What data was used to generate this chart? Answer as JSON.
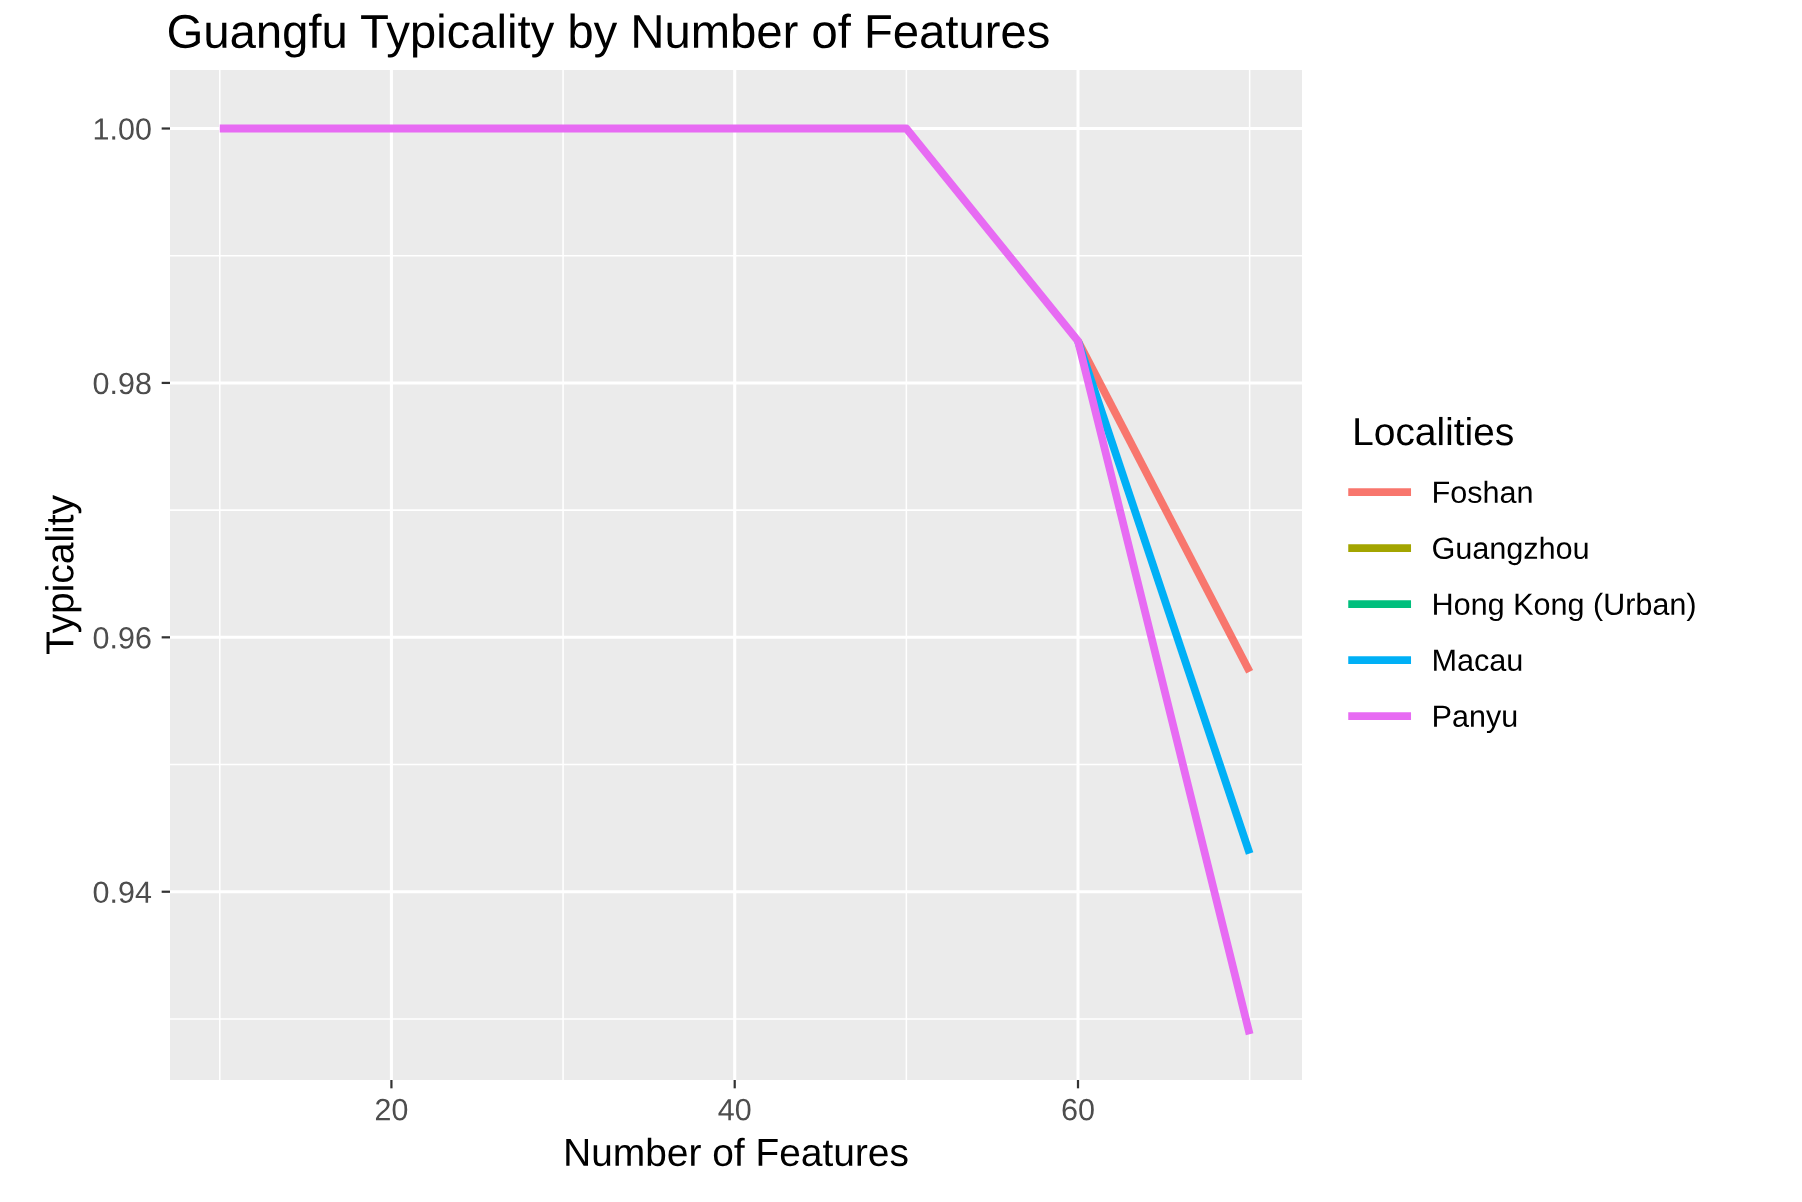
{
  "chart_data": {
    "type": "line",
    "title": "Guangfu Typicality by Number of Features",
    "xlabel": "Number of Features",
    "ylabel": "Typicality",
    "legend_title": "Localities",
    "legend": "right",
    "grid": true,
    "x": [
      10,
      20,
      30,
      40,
      50,
      60,
      70
    ],
    "series": [
      {
        "name": "Foshan",
        "color": "#f8766d",
        "values": [
          null,
          null,
          null,
          null,
          null,
          0.9833,
          0.9573
        ]
      },
      {
        "name": "Guangzhou",
        "color": "#a3a500",
        "values": [
          null,
          null,
          null,
          null,
          null,
          null,
          null
        ]
      },
      {
        "name": "Hong Kong (Urban)",
        "color": "#00bf7d",
        "values": [
          null,
          null,
          null,
          null,
          null,
          null,
          null
        ]
      },
      {
        "name": "Macau",
        "color": "#00b0f6",
        "values": [
          null,
          null,
          null,
          null,
          null,
          0.9833,
          0.943
        ]
      },
      {
        "name": "Panyu",
        "color": "#e76bf3",
        "values": [
          1.0,
          1.0,
          1.0,
          1.0,
          1.0,
          0.9833,
          0.9288
        ]
      }
    ],
    "xlim": [
      7.1,
      73.05
    ],
    "xticks": [
      20,
      40,
      60
    ],
    "ylim": [
      0.9252,
      1.0046
    ],
    "yticks": [
      {
        "value": 0.94,
        "label": "0.94"
      },
      {
        "value": 0.96,
        "label": "0.96"
      },
      {
        "value": 0.98,
        "label": "0.98"
      },
      {
        "value": 1.0,
        "label": "1.00"
      }
    ]
  }
}
